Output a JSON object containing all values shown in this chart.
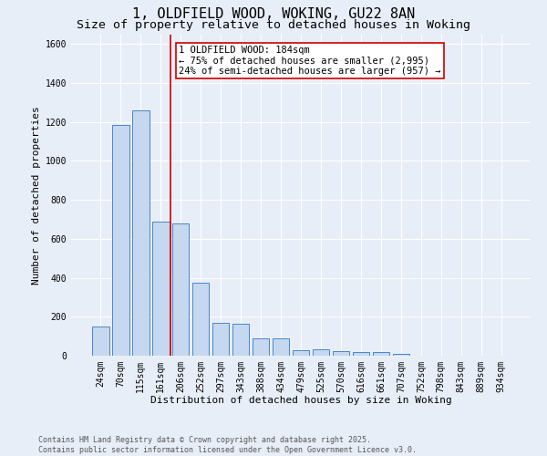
{
  "title": "1, OLDFIELD WOOD, WOKING, GU22 8AN",
  "subtitle": "Size of property relative to detached houses in Woking",
  "xlabel": "Distribution of detached houses by size in Woking",
  "ylabel": "Number of detached properties",
  "categories": [
    "24sqm",
    "70sqm",
    "115sqm",
    "161sqm",
    "206sqm",
    "252sqm",
    "297sqm",
    "343sqm",
    "388sqm",
    "434sqm",
    "479sqm",
    "525sqm",
    "570sqm",
    "616sqm",
    "661sqm",
    "707sqm",
    "752sqm",
    "798sqm",
    "843sqm",
    "889sqm",
    "934sqm"
  ],
  "values": [
    150,
    1185,
    1260,
    690,
    680,
    375,
    170,
    165,
    90,
    90,
    30,
    35,
    25,
    20,
    20,
    10,
    0,
    0,
    0,
    0,
    0
  ],
  "bar_color": "#c5d8f0",
  "bar_edge_color": "#4a86c8",
  "vline_color": "#cc0000",
  "annotation_text": "1 OLDFIELD WOOD: 184sqm\n← 75% of detached houses are smaller (2,995)\n24% of semi-detached houses are larger (957) →",
  "annotation_box_color": "#ffffff",
  "annotation_box_edge": "#cc0000",
  "ylim": [
    0,
    1650
  ],
  "yticks": [
    0,
    200,
    400,
    600,
    800,
    1000,
    1200,
    1400,
    1600
  ],
  "footer_line1": "Contains HM Land Registry data © Crown copyright and database right 2025.",
  "footer_line2": "Contains public sector information licensed under the Open Government Licence v3.0.",
  "background_color": "#e8eef8",
  "plot_bg_color": "#e8eef8",
  "grid_color": "#ffffff",
  "title_fontsize": 11,
  "subtitle_fontsize": 9.5,
  "axis_label_fontsize": 8,
  "tick_fontsize": 7,
  "footer_fontsize": 6,
  "annotation_fontsize": 7.5
}
